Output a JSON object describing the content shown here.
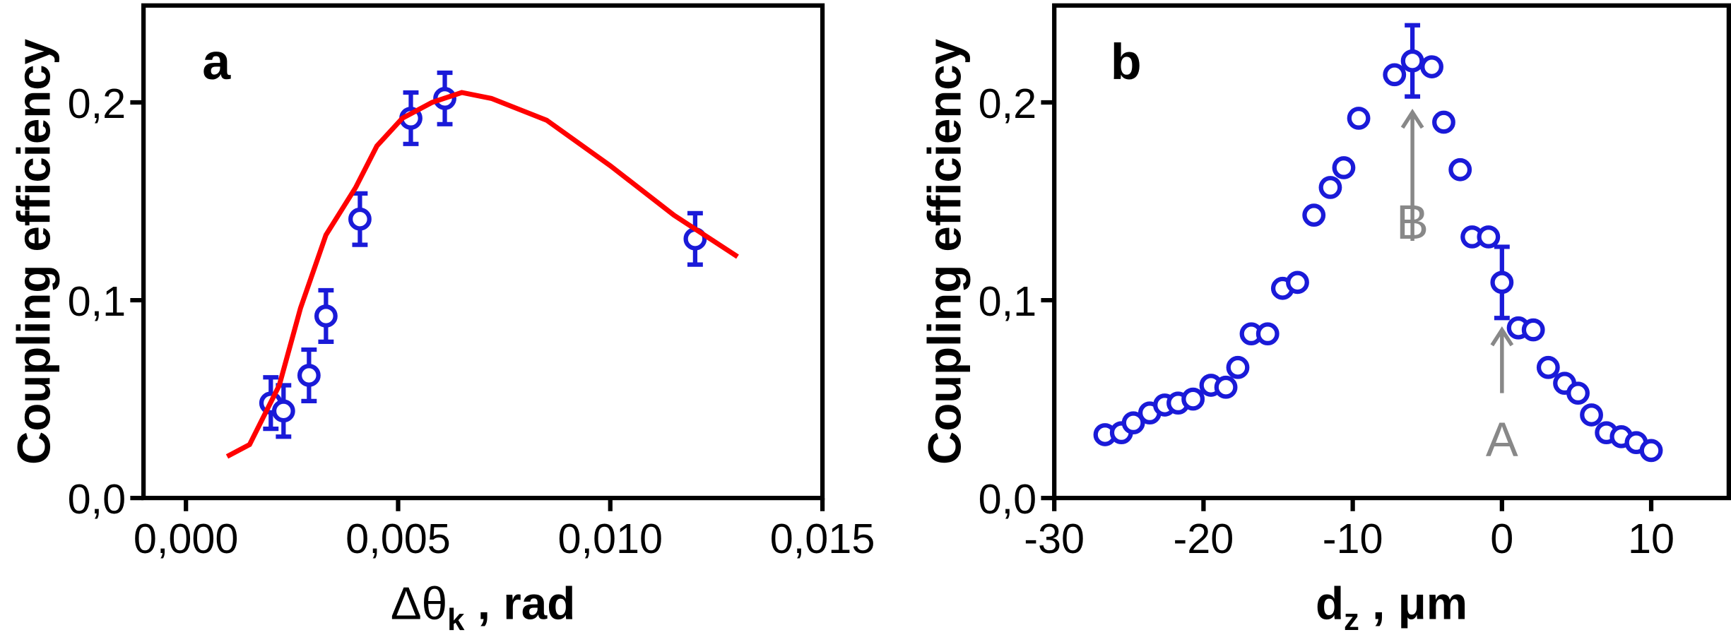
{
  "chart_data": [
    {
      "type": "scatter",
      "panel_label": "a",
      "xlabel": {
        "text": "Δθ",
        "sub": "k",
        "suffix": " , rad"
      },
      "ylabel": "Coupling efficiency",
      "xlim": [
        -0.001,
        0.015
      ],
      "ylim": [
        0,
        0.249
      ],
      "xticks": [
        {
          "value": 0,
          "label": "0,000"
        },
        {
          "value": 0.005,
          "label": "0,005"
        },
        {
          "value": 0.01,
          "label": "0,010"
        },
        {
          "value": 0.015,
          "label": "0,015"
        }
      ],
      "yticks": [
        {
          "value": 0,
          "label": "0,0"
        },
        {
          "value": 0.1,
          "label": "0,1"
        },
        {
          "value": 0.2,
          "label": "0,2"
        }
      ],
      "series": [
        {
          "mark": "circle",
          "color": "#1a1ad8",
          "x": [
            0.002,
            0.0023,
            0.0029,
            0.0033,
            0.0041,
            0.0053,
            0.0061,
            0.012
          ],
          "values": [
            0.048,
            0.044,
            0.062,
            0.092,
            0.141,
            0.192,
            0.202,
            0.131
          ],
          "errors": [
            0.013,
            0.013,
            0.013,
            0.013,
            0.013,
            0.013,
            0.013,
            0.013
          ]
        },
        {
          "mark": "line",
          "color": "#ff0000",
          "x": [
            0.00097,
            0.0015,
            0.0022,
            0.0027,
            0.0033,
            0.004,
            0.0045,
            0.0051,
            0.0058,
            0.0065,
            0.0072,
            0.0085,
            0.01,
            0.0115,
            0.013
          ],
          "values": [
            0.021,
            0.027,
            0.057,
            0.096,
            0.133,
            0.157,
            0.178,
            0.192,
            0.2,
            0.205,
            0.202,
            0.191,
            0.168,
            0.143,
            0.122
          ]
        }
      ]
    },
    {
      "type": "scatter",
      "panel_label": "b",
      "xlabel": {
        "text": "d",
        "sub": "z",
        "suffix": " , μm"
      },
      "ylabel": "Coupling efficiency",
      "xlim": [
        -30,
        15.2
      ],
      "ylim": [
        0,
        0.249
      ],
      "xticks": [
        -30,
        -20,
        -10,
        0,
        10
      ],
      "yticks": [
        {
          "value": 0,
          "label": "0,0"
        },
        {
          "value": 0.1,
          "label": "0,1"
        },
        {
          "value": 0.2,
          "label": "0,2"
        }
      ],
      "annotations": [
        "B",
        "A"
      ],
      "series": [
        {
          "mark": "circle",
          "color": "#1a1ad8",
          "x": [
            -26.6,
            -25.5,
            -24.7,
            -23.6,
            -22.6,
            -21.7,
            -20.7,
            -19.5,
            -18.5,
            -17.7,
            -16.8,
            -15.7,
            -14.7,
            -13.7,
            -12.6,
            -11.5,
            -10.6,
            -9.6,
            -7.2,
            -6,
            -4.7,
            -3.9,
            -2.8,
            -2,
            -0.9,
            0,
            1.1,
            2.1,
            3.1,
            4.2,
            5.1,
            6,
            7,
            8,
            9,
            10
          ],
          "values": [
            0.032,
            0.033,
            0.038,
            0.043,
            0.047,
            0.048,
            0.05,
            0.057,
            0.056,
            0.066,
            0.083,
            0.083,
            0.106,
            0.109,
            0.143,
            0.157,
            0.167,
            0.192,
            0.214,
            0.221,
            0.218,
            0.19,
            0.166,
            0.132,
            0.132,
            0.109,
            0.086,
            0.085,
            0.066,
            0.058,
            0.053,
            0.042,
            0.033,
            0.031,
            0.028,
            0.024
          ],
          "errors": [
            0.003,
            0.003,
            0.003,
            0.003,
            0.003,
            0.003,
            0.003,
            0.003,
            0.003,
            0.003,
            0.003,
            0.003,
            0.003,
            0.003,
            0.003,
            0.003,
            0.003,
            0.003,
            0.003,
            0.018,
            0.003,
            0.003,
            0.003,
            0.003,
            0.003,
            0.018,
            0.003,
            0.003,
            0.003,
            0.003,
            0.003,
            0.003,
            0.003,
            0.003,
            0.003,
            0.003
          ]
        }
      ]
    }
  ]
}
